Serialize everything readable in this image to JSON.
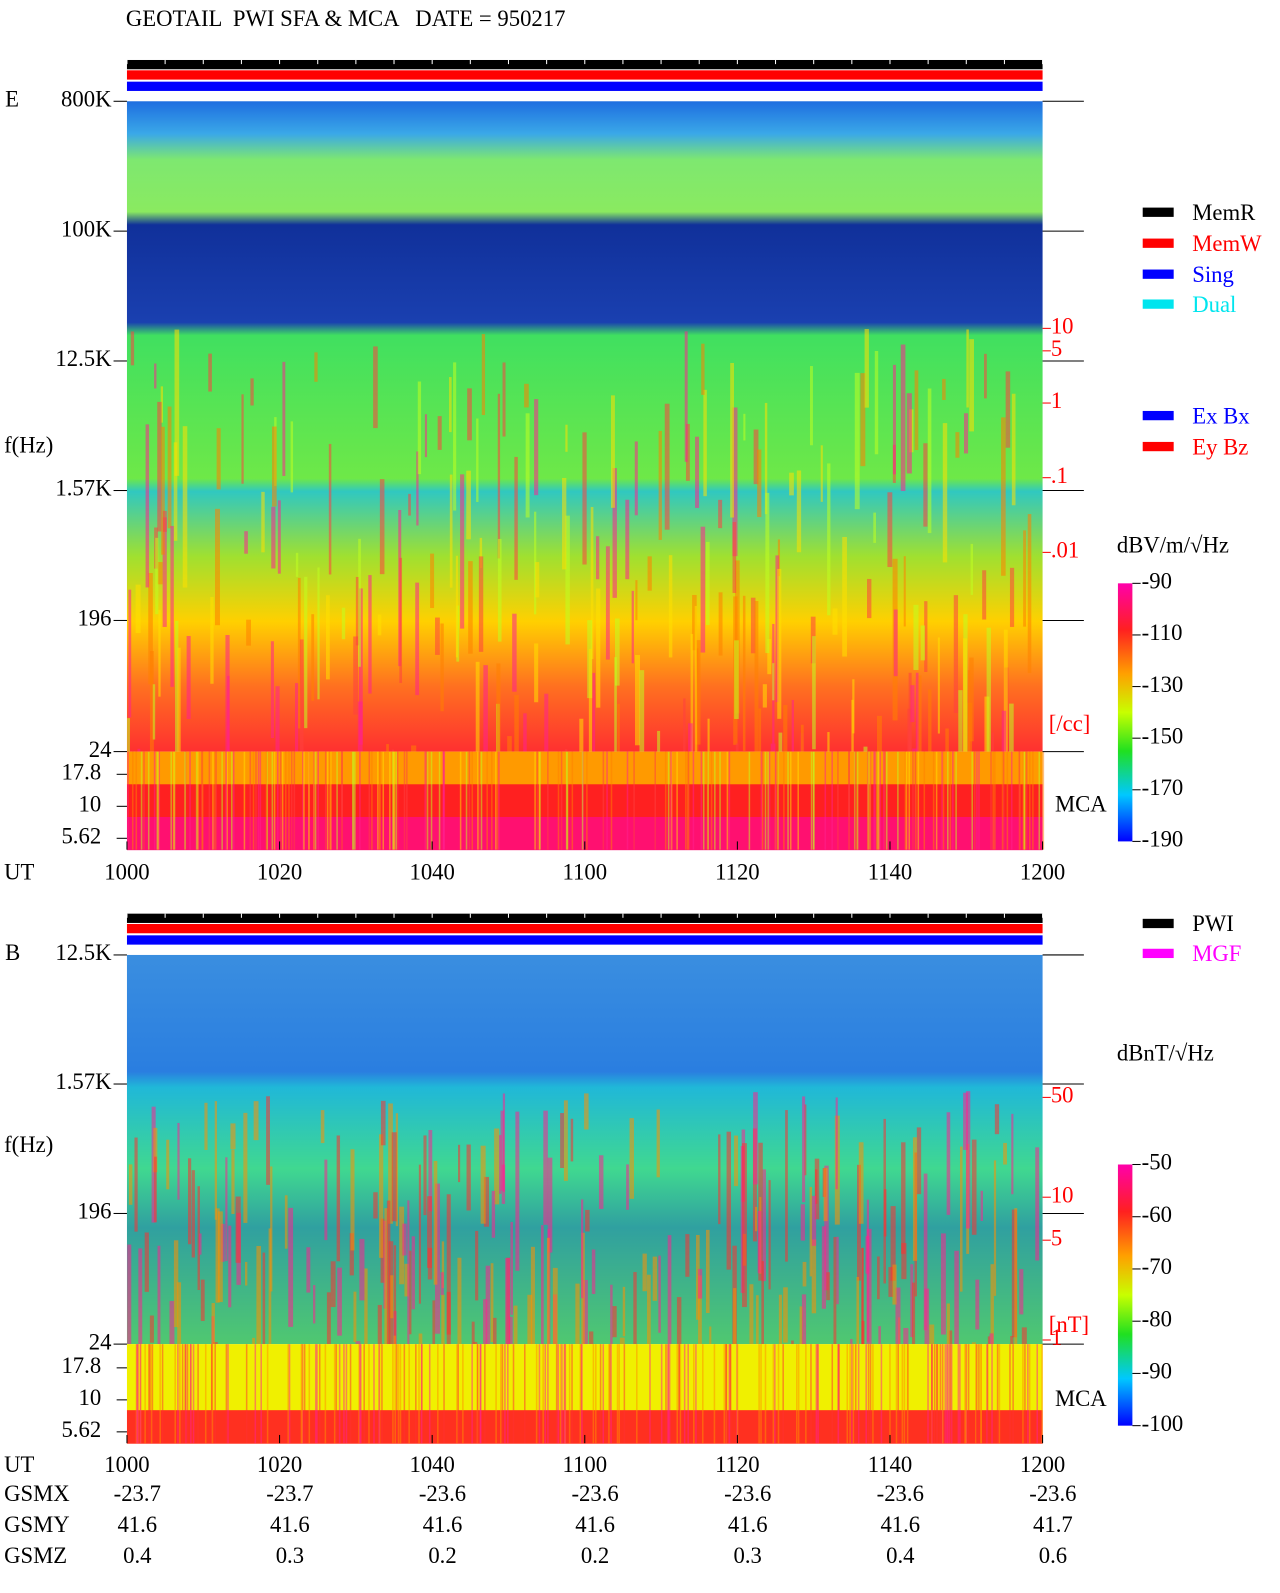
{
  "title": "GEOTAIL  PWI SFA & MCA   DATE = 950217",
  "chart_data": [
    {
      "type": "spectrogram",
      "panel_label": "E",
      "x_label": "UT",
      "y_label": "f(Hz)",
      "x": [
        "1000",
        "1020",
        "1040",
        "1100",
        "1120",
        "1140",
        "1200"
      ],
      "yscale": "log",
      "ylim": [
        24,
        800000
      ],
      "yticks": [
        {
          "value": 800000,
          "label": "800K"
        },
        {
          "value": 100000,
          "label": "100K"
        },
        {
          "value": 12500,
          "label": "12.5K"
        },
        {
          "value": 1570,
          "label": "1.57K"
        },
        196,
        24
      ],
      "mca_label": "MCA",
      "mca_ylim": [
        5.62,
        17.8
      ],
      "mca_yticks": [
        17.8,
        10,
        5.62
      ],
      "density_scale": {
        "label": "[/cc]",
        "lim": [
          0.01,
          10
        ],
        "ticks": [
          10,
          5,
          1,
          {
            "value": 0.1,
            "label": ".1"
          },
          {
            "value": 0.01,
            "label": ".01"
          }
        ]
      },
      "colorbar": {
        "label": "dBV/m/√Hz",
        "lim": [
          -190,
          -90
        ],
        "ticks": [
          -90,
          -110,
          -130,
          -150,
          -170,
          -190
        ]
      },
      "legend": [
        {
          "name": "MemR",
          "color": "#000000"
        },
        {
          "name": "MemW",
          "color": "#ff0000"
        },
        {
          "name": "Sing",
          "color": "#0000ff"
        },
        {
          "name": "Dual",
          "color": "#00e5ee"
        },
        {
          "name": "Ex Bx",
          "color": "#0000ff"
        },
        {
          "name": "Ey Bz",
          "color": "#ff0000"
        }
      ]
    },
    {
      "type": "spectrogram",
      "panel_label": "B",
      "x_label": "UT",
      "y_label": "f(Hz)",
      "x": [
        "1000",
        "1020",
        "1040",
        "1100",
        "1120",
        "1140",
        "1200"
      ],
      "yscale": "log",
      "ylim": [
        24,
        12500
      ],
      "yticks": [
        {
          "value": 12500,
          "label": "12.5K"
        },
        {
          "value": 1570,
          "label": "1.57K"
        },
        196,
        24
      ],
      "mca_label": "MCA",
      "mca_ylim": [
        5.62,
        17.8
      ],
      "mca_yticks": [
        17.8,
        10,
        5.62
      ],
      "density_scale": {
        "label": "[nT]",
        "lim": [
          1,
          50
        ],
        "ticks": [
          50,
          10,
          5,
          1
        ]
      },
      "colorbar": {
        "label": "dBnT/√Hz",
        "lim": [
          -100,
          -50
        ],
        "ticks": [
          -50,
          -60,
          -70,
          -80,
          -90,
          -100
        ]
      },
      "legend": [
        {
          "name": "PWI",
          "color": "#000000"
        },
        {
          "name": "MGF",
          "color": "#ff00ff"
        }
      ]
    }
  ],
  "orbit": {
    "rows": [
      {
        "label": "GSMX",
        "values": [
          -23.7,
          -23.7,
          -23.6,
          -23.6,
          -23.6,
          -23.6,
          -23.6
        ]
      },
      {
        "label": "GSMY",
        "values": [
          41.6,
          41.6,
          41.6,
          41.6,
          41.6,
          41.6,
          41.7
        ]
      },
      {
        "label": "GSMZ",
        "values": [
          0.4,
          0.3,
          0.2,
          0.2,
          0.3,
          0.4,
          0.6
        ]
      }
    ]
  }
}
